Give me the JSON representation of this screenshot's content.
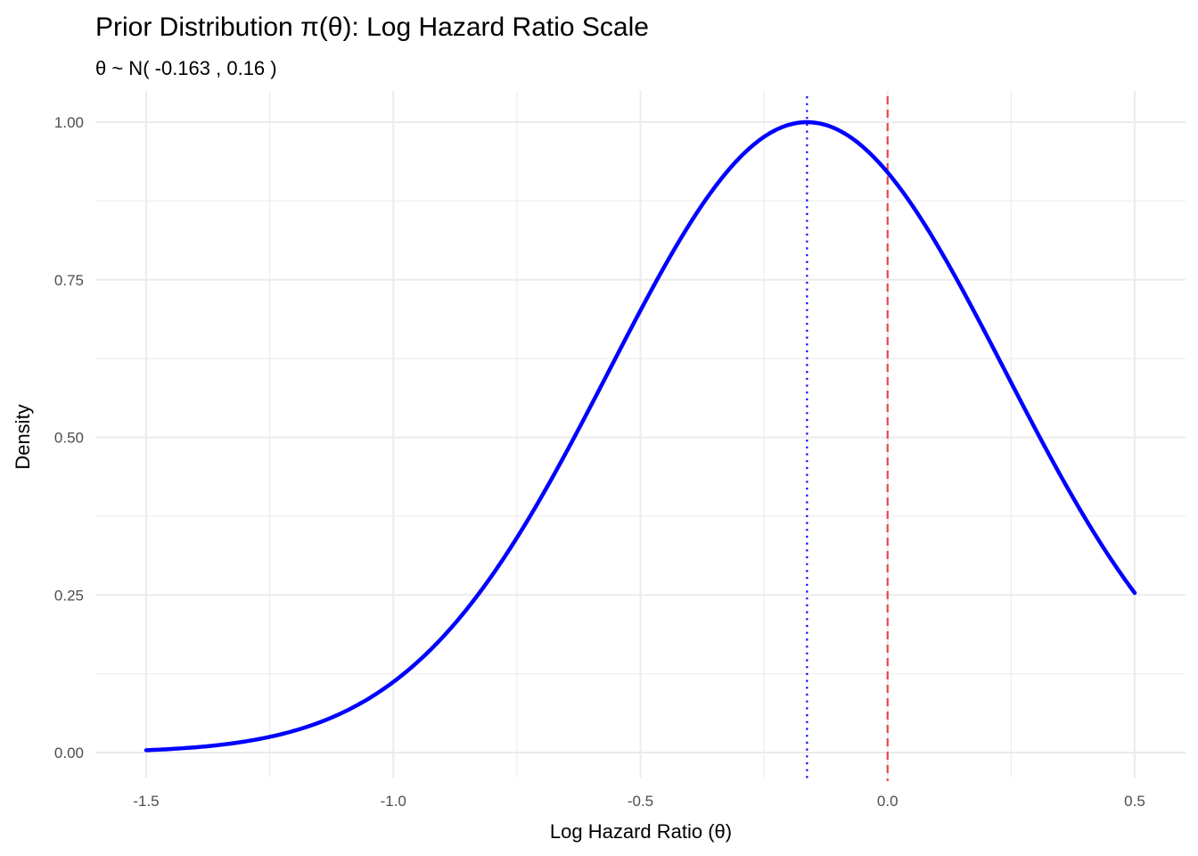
{
  "chart_data": {
    "type": "line",
    "title": "Prior Distribution π(θ): Log Hazard Ratio Scale",
    "subtitle": "θ ~ N( -0.163 , 0.16 )",
    "xlabel": "Log Hazard Ratio (θ)",
    "ylabel": "Density",
    "xlim": [
      -1.5,
      0.5
    ],
    "ylim": [
      0,
      1
    ],
    "x_ticks": [
      -1.5,
      -1.0,
      -0.5,
      0.0,
      0.5
    ],
    "x_tick_labels": [
      "-1.5",
      "-1.0",
      "-0.5",
      "0.0",
      "0.5"
    ],
    "y_ticks": [
      0,
      0.25,
      0.5,
      0.75,
      1.0
    ],
    "y_tick_labels": [
      "0.00",
      "0.25",
      "0.50",
      "0.75",
      "1.00"
    ],
    "grid": true,
    "series": [
      {
        "color": "#0000ff",
        "distribution": "normal",
        "mean": -0.163,
        "variance": 0.16,
        "x_range": [
          -1.5,
          0.5
        ]
      }
    ],
    "reference_lines": [
      {
        "type": "vertical",
        "x": -0.163,
        "style": "dotted",
        "color": "#0000ff"
      },
      {
        "type": "vertical",
        "x": 0.0,
        "style": "dashed",
        "color": "#e8464a"
      }
    ]
  }
}
